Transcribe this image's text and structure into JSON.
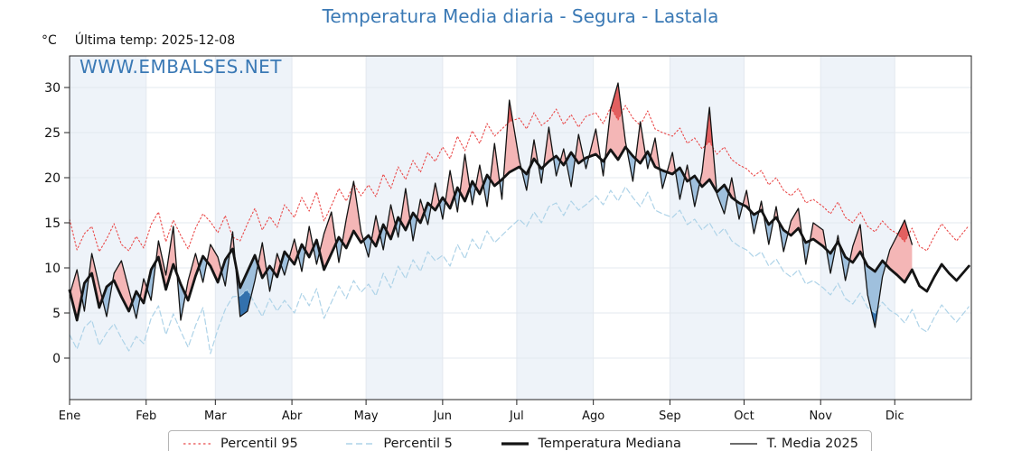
{
  "header": {
    "title": "Temperatura Media diaria - Segura - Lastala",
    "unit_label": "°C",
    "last_temp_label": "Última temp: 2025-12-08"
  },
  "watermark": "WWW.EMBALSES.NET",
  "chart_data": {
    "type": "line",
    "title": "Temperatura Media diaria - Segura - Lastala",
    "xlabel": "",
    "ylabel": "°C",
    "annotation": "Última temp: 2025-12-08",
    "legend_position": "bottom",
    "grid": true,
    "x_unit": "day_of_year",
    "xlim": [
      1,
      366
    ],
    "ylim": [
      -4.6,
      33.5
    ],
    "y_ticks": [
      0,
      5,
      10,
      15,
      20,
      25,
      30
    ],
    "month_labels": [
      "Ene",
      "Feb",
      "Mar",
      "Abr",
      "May",
      "Jun",
      "Jul",
      "Ago",
      "Sep",
      "Oct",
      "Nov",
      "Dic"
    ],
    "month_start_days": [
      1,
      32,
      60,
      91,
      121,
      152,
      182,
      213,
      244,
      274,
      305,
      335,
      366
    ],
    "band_colors": [
      "#eef3f9",
      "#ffffff"
    ],
    "grid_color": "#e3e8ef",
    "spine_color": "#222222",
    "fill_colors": {
      "above_median": "#f4b6b6",
      "below_median": "#9fc0dd",
      "above_p95": "#e26060",
      "below_p5": "#3371ad"
    },
    "days": [
      1,
      4,
      7,
      10,
      13,
      16,
      19,
      22,
      25,
      28,
      31,
      34,
      37,
      40,
      43,
      46,
      49,
      52,
      55,
      58,
      61,
      64,
      67,
      70,
      73,
      76,
      79,
      82,
      85,
      88,
      92,
      95,
      98,
      101,
      104,
      107,
      110,
      113,
      116,
      119,
      122,
      125,
      128,
      131,
      134,
      137,
      140,
      143,
      146,
      149,
      152,
      155,
      158,
      161,
      164,
      167,
      170,
      173,
      176,
      179,
      183,
      186,
      189,
      192,
      195,
      198,
      201,
      204,
      207,
      210,
      214,
      217,
      220,
      223,
      226,
      229,
      232,
      235,
      238,
      241,
      245,
      248,
      251,
      254,
      257,
      260,
      263,
      266,
      269,
      272,
      275,
      278,
      281,
      284,
      287,
      290,
      293,
      296,
      299,
      302,
      306,
      309,
      312,
      315,
      318,
      321,
      324,
      327,
      330,
      333,
      336,
      339,
      342,
      345,
      348,
      351,
      354,
      357,
      360,
      365
    ],
    "series": [
      {
        "key": "p95",
        "name": "Percentil 95",
        "color": "#ea4a4a",
        "dash": "dotted",
        "width": 1.1,
        "values": [
          15.4,
          12.0,
          13.8,
          14.6,
          11.8,
          13.2,
          14.9,
          12.6,
          11.9,
          13.5,
          12.2,
          14.8,
          16.2,
          12.9,
          15.3,
          13.6,
          12.1,
          14.4,
          16.0,
          15.1,
          13.9,
          15.8,
          13.4,
          13.0,
          14.9,
          16.6,
          14.2,
          15.7,
          14.5,
          17.0,
          15.6,
          17.8,
          16.3,
          18.4,
          15.2,
          16.9,
          18.8,
          17.4,
          19.3,
          18.0,
          19.2,
          17.9,
          20.4,
          18.8,
          21.2,
          19.8,
          21.9,
          20.6,
          22.8,
          21.8,
          23.4,
          22.1,
          24.6,
          23.0,
          25.2,
          23.8,
          26.0,
          24.6,
          25.4,
          26.2,
          26.6,
          25.4,
          27.2,
          25.8,
          26.4,
          27.6,
          25.9,
          27.0,
          25.6,
          26.8,
          27.2,
          26.0,
          27.8,
          26.4,
          28.0,
          26.6,
          25.8,
          27.4,
          25.4,
          25.0,
          24.6,
          25.5,
          23.8,
          24.4,
          23.2,
          24.0,
          22.6,
          23.4,
          22.0,
          21.4,
          21.0,
          20.2,
          20.8,
          19.2,
          20.0,
          18.6,
          18.0,
          18.8,
          17.2,
          17.6,
          16.8,
          16.0,
          17.3,
          15.6,
          15.0,
          16.2,
          14.6,
          14.0,
          15.2,
          14.3,
          13.8,
          12.9,
          14.4,
          12.4,
          11.9,
          13.5,
          14.9,
          13.9,
          13.0,
          14.7
        ]
      },
      {
        "key": "p5",
        "name": "Percentil 5",
        "color": "#aed3e8",
        "dash": "dashed",
        "width": 1.2,
        "values": [
          2.6,
          1.0,
          3.4,
          4.2,
          1.4,
          2.8,
          3.8,
          2.2,
          0.8,
          2.4,
          1.6,
          4.4,
          5.8,
          2.6,
          4.9,
          3.0,
          1.2,
          3.6,
          5.6,
          0.5,
          3.2,
          5.4,
          6.8,
          6.9,
          7.6,
          6.0,
          4.6,
          6.6,
          5.2,
          6.4,
          5.0,
          7.2,
          5.8,
          7.7,
          4.4,
          6.2,
          8.0,
          6.6,
          8.6,
          7.3,
          8.2,
          6.9,
          9.4,
          7.8,
          10.2,
          8.8,
          10.9,
          9.6,
          11.8,
          10.8,
          11.4,
          10.2,
          12.6,
          11.0,
          13.2,
          12.0,
          14.1,
          12.8,
          13.6,
          14.4,
          15.4,
          14.6,
          16.2,
          15.0,
          16.8,
          17.2,
          15.8,
          17.4,
          16.4,
          17.0,
          18.0,
          17.0,
          18.6,
          17.4,
          19.0,
          17.8,
          16.8,
          18.4,
          16.4,
          16.0,
          15.6,
          16.4,
          14.8,
          15.4,
          14.2,
          15.0,
          13.6,
          14.4,
          13.0,
          12.4,
          12.0,
          11.2,
          11.8,
          10.2,
          11.0,
          9.6,
          9.0,
          9.8,
          8.2,
          8.6,
          7.8,
          7.0,
          8.3,
          6.6,
          6.0,
          7.2,
          5.6,
          5.0,
          6.2,
          5.3,
          4.8,
          3.9,
          5.4,
          3.4,
          2.9,
          4.5,
          5.9,
          4.9,
          4.0,
          5.7
        ]
      },
      {
        "key": "median",
        "name": "Temperatura Mediana",
        "color": "#141414",
        "dash": "solid",
        "width": 2.8,
        "values": [
          7.5,
          4.2,
          8.3,
          9.4,
          5.6,
          7.9,
          8.6,
          6.8,
          5.2,
          7.4,
          6.1,
          9.8,
          11.2,
          7.6,
          10.4,
          8.2,
          6.4,
          9.1,
          11.3,
          10.2,
          8.4,
          10.9,
          12.1,
          7.8,
          9.6,
          11.4,
          8.9,
          10.2,
          9.0,
          11.8,
          10.4,
          12.6,
          11.2,
          13.1,
          9.8,
          11.6,
          13.4,
          12.2,
          14.1,
          12.8,
          13.6,
          12.4,
          14.8,
          13.2,
          15.6,
          14.2,
          16.1,
          15.0,
          17.2,
          16.4,
          17.8,
          16.6,
          18.9,
          17.4,
          19.6,
          18.2,
          20.3,
          19.1,
          19.8,
          20.6,
          21.2,
          20.4,
          22.1,
          21.0,
          21.8,
          22.4,
          21.4,
          22.8,
          21.6,
          22.2,
          22.6,
          21.8,
          23.1,
          22.0,
          23.4,
          22.4,
          21.6,
          22.9,
          21.2,
          20.8,
          20.4,
          21.1,
          19.6,
          20.2,
          19.0,
          19.8,
          18.4,
          19.2,
          17.8,
          17.2,
          16.8,
          15.9,
          16.4,
          14.8,
          15.6,
          14.2,
          13.6,
          14.4,
          12.8,
          13.2,
          12.4,
          11.6,
          12.9,
          11.2,
          10.6,
          11.8,
          10.2,
          9.6,
          10.8,
          9.9,
          9.2,
          8.4,
          9.8,
          8.0,
          7.4,
          9.0,
          10.4,
          9.4,
          8.6,
          10.2
        ]
      },
      {
        "key": "t2025",
        "name": "T. Media 2025",
        "color": "#141414",
        "dash": "solid",
        "width": 1.3,
        "ends_day": 342,
        "values": [
          7.0,
          9.8,
          5.2,
          11.6,
          8.0,
          4.6,
          9.4,
          10.8,
          7.6,
          4.4,
          8.8,
          6.4,
          13.0,
          9.2,
          14.6,
          4.2,
          8.6,
          11.6,
          8.4,
          12.6,
          11.2,
          8.0,
          14.0,
          4.6,
          5.2,
          8.6,
          12.8,
          7.4,
          11.6,
          9.2,
          13.2,
          9.6,
          14.6,
          10.4,
          13.8,
          16.2,
          10.6,
          15.4,
          19.6,
          14.0,
          11.2,
          15.8,
          12.0,
          17.0,
          13.4,
          18.8,
          13.0,
          17.6,
          14.8,
          19.4,
          15.4,
          20.8,
          16.2,
          22.6,
          17.0,
          21.4,
          16.8,
          23.8,
          17.6,
          28.6,
          22.0,
          18.6,
          24.2,
          19.4,
          25.6,
          20.2,
          23.2,
          19.0,
          24.8,
          21.0,
          25.4,
          20.2,
          27.6,
          30.5,
          24.0,
          19.6,
          26.2,
          21.0,
          24.4,
          18.8,
          22.8,
          17.6,
          21.4,
          16.8,
          20.6,
          27.8,
          18.2,
          16.0,
          20.0,
          15.4,
          18.6,
          13.8,
          17.4,
          12.6,
          16.8,
          11.8,
          15.2,
          16.6,
          10.4,
          15.0,
          14.2,
          9.4,
          13.6,
          8.6,
          12.4,
          14.8,
          7.0,
          3.4,
          9.0,
          12.0,
          13.6,
          15.3,
          12.6
        ]
      }
    ]
  }
}
